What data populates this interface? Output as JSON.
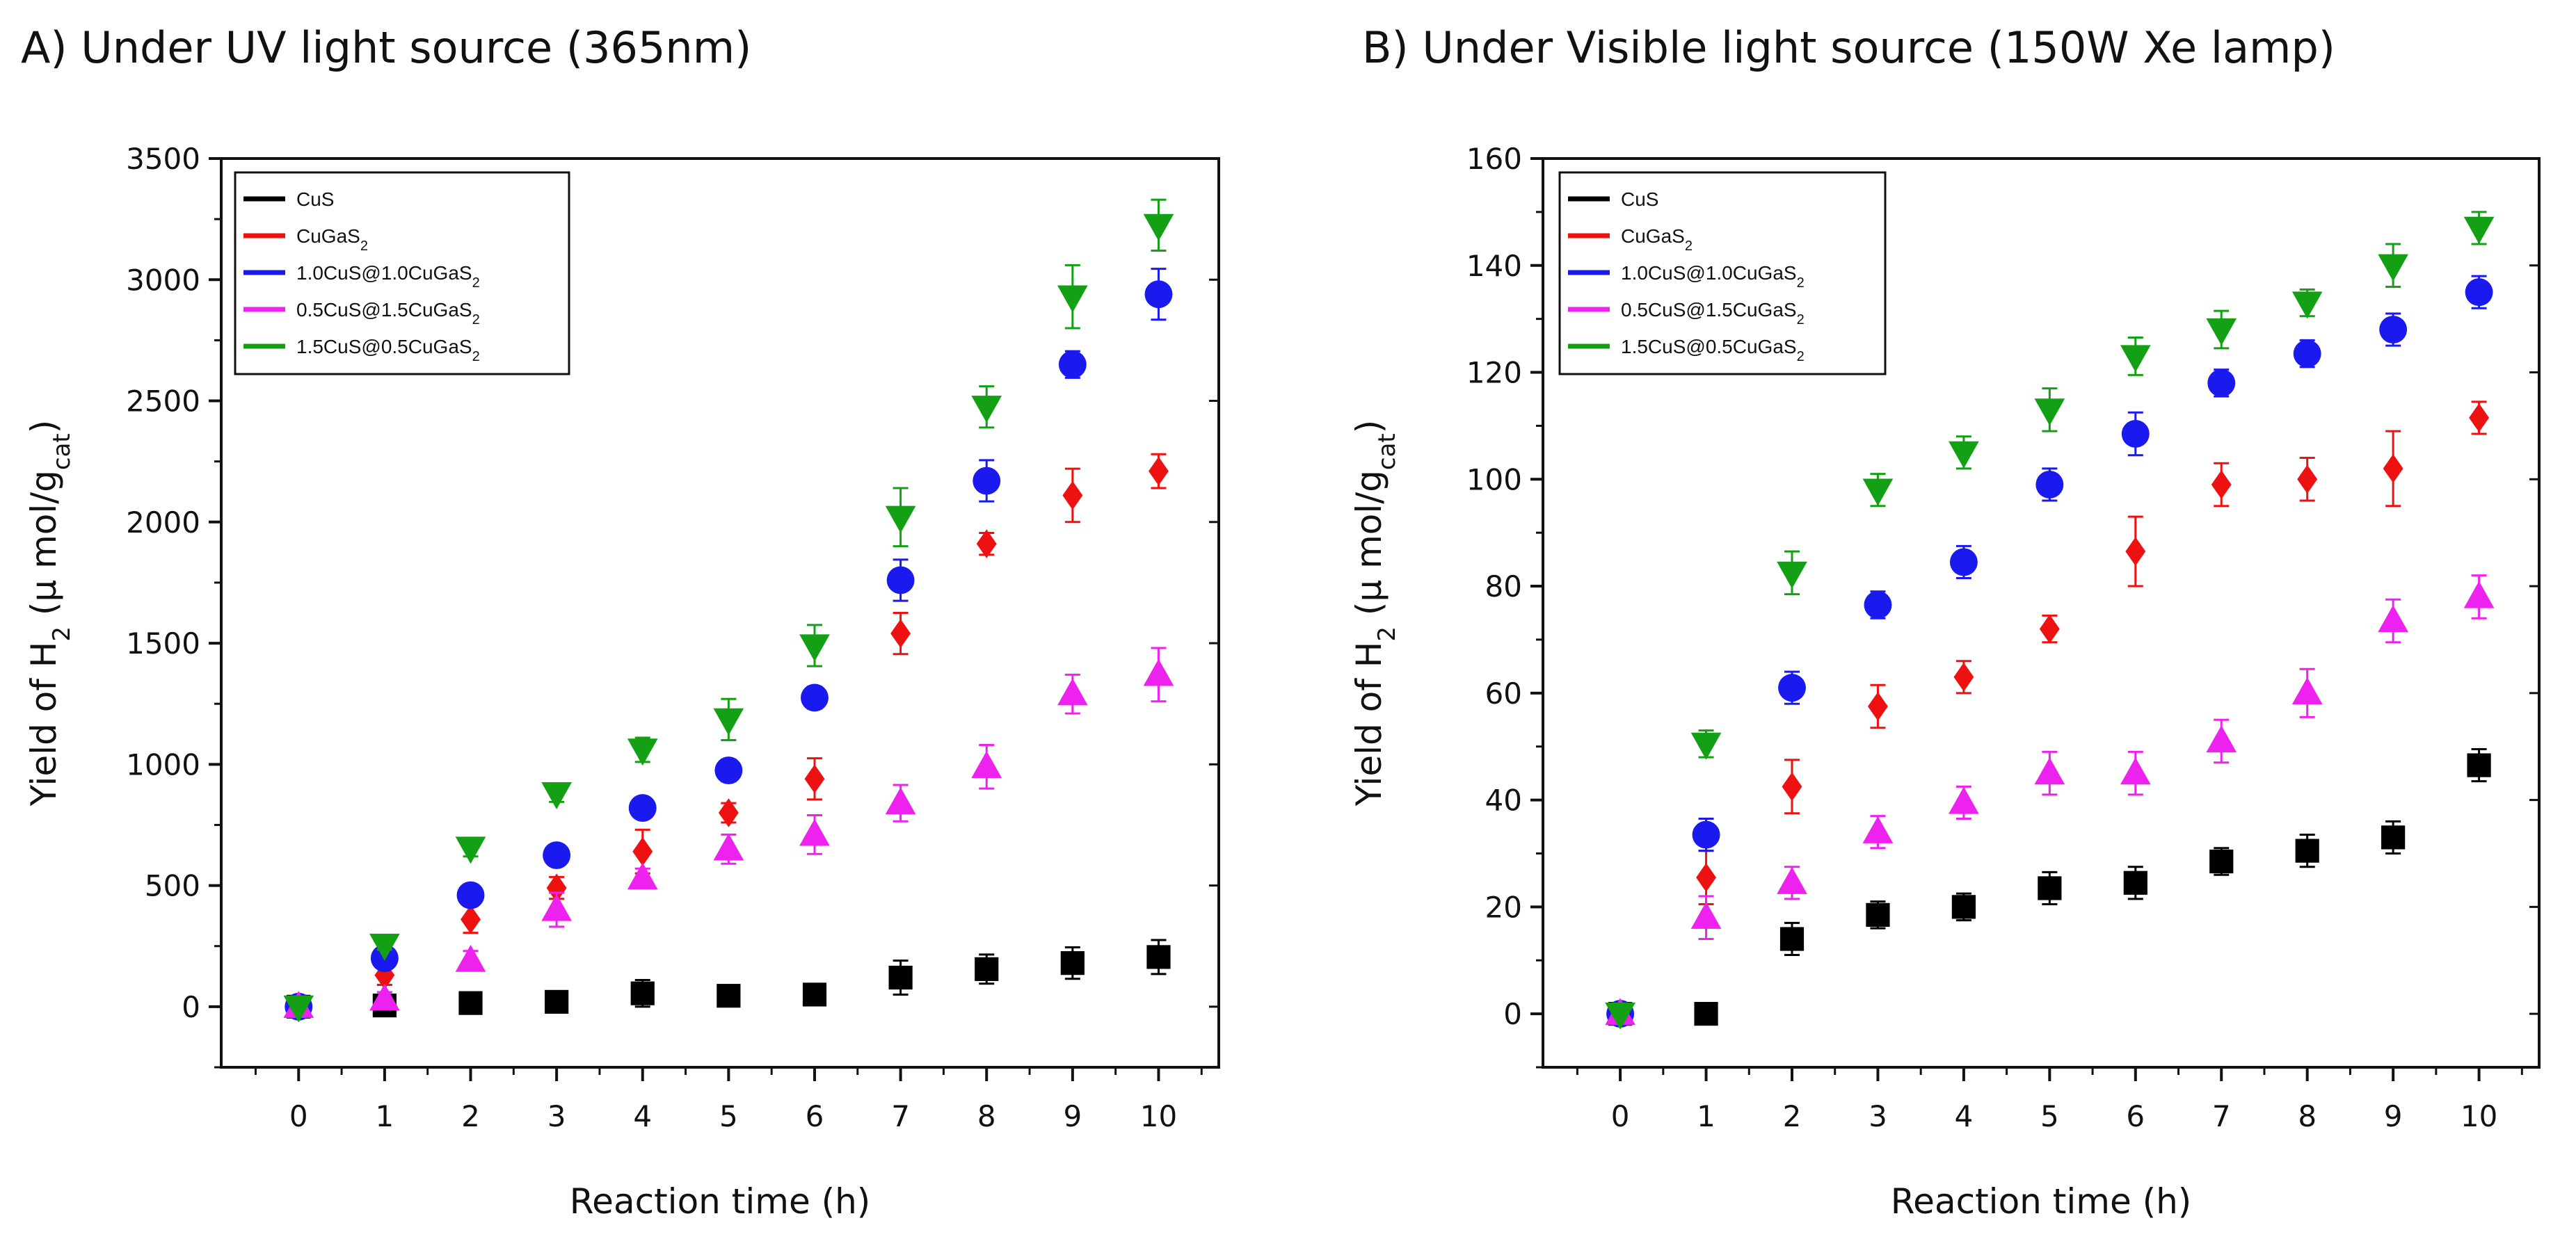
{
  "chart_data": [
    {
      "id": "A",
      "type": "scatter",
      "title": "A) Under UV light source (365nm)",
      "xlabel": "Reaction time (h)",
      "ylabel": {
        "main": "Yield of H",
        "sub1": "2",
        "mid": " (μ mol/g",
        "sub2": "cat",
        "end": ")"
      },
      "xlim": [
        -0.9,
        10.7
      ],
      "ylim": [
        -250,
        3500
      ],
      "xticks": [
        "0",
        "1",
        "2",
        "3",
        "4",
        "5",
        "6",
        "7",
        "8",
        "9",
        "10"
      ],
      "yticks": [
        "0",
        "500",
        "1000",
        "1500",
        "2000",
        "2500",
        "3000",
        "3500"
      ],
      "legend_position": "top-left",
      "x": [
        0,
        1,
        2,
        3,
        4,
        5,
        6,
        7,
        8,
        9,
        10
      ],
      "series": [
        {
          "name": "CuS",
          "parts": [
            "CuS"
          ],
          "color": "#000000",
          "marker": "square",
          "values": [
            0,
            5,
            15,
            20,
            55,
            45,
            50,
            120,
            155,
            180,
            205
          ],
          "errors": [
            10,
            20,
            25,
            30,
            55,
            25,
            30,
            70,
            60,
            65,
            70
          ]
        },
        {
          "name": "CuGaS2",
          "parts": [
            "CuGaS",
            "2"
          ],
          "color": "#ee1111",
          "marker": "diamond",
          "values": [
            0,
            130,
            360,
            490,
            640,
            800,
            940,
            1540,
            1910,
            2110,
            2210
          ],
          "errors": [
            10,
            40,
            55,
            45,
            90,
            40,
            85,
            85,
            45,
            110,
            70
          ]
        },
        {
          "name": "1.0CuS@1.0CuGaS2",
          "parts": [
            "1.0CuS@1.0CuGaS",
            "2"
          ],
          "color": "#1a1aee",
          "marker": "circle",
          "values": [
            0,
            200,
            460,
            625,
            820,
            975,
            1275,
            1760,
            2170,
            2650,
            2940
          ],
          "errors": [
            10,
            30,
            30,
            35,
            30,
            45,
            45,
            85,
            85,
            55,
            105
          ]
        },
        {
          "name": "0.5CuS@1.5CuGaS2",
          "parts": [
            "0.5CuS@1.5CuGaS",
            "2"
          ],
          "color": "#ee22ee",
          "marker": "triangle-up",
          "values": [
            0,
            30,
            190,
            400,
            530,
            650,
            710,
            840,
            990,
            1290,
            1370
          ],
          "errors": [
            10,
            30,
            40,
            70,
            40,
            60,
            80,
            75,
            90,
            80,
            110
          ]
        },
        {
          "name": "1.5CuS@0.5CuGaS2",
          "parts": [
            "1.5CuS@0.5CuGaS",
            "2"
          ],
          "color": "#14a014",
          "marker": "triangle-down",
          "values": [
            0,
            255,
            655,
            880,
            1060,
            1185,
            1490,
            2020,
            2475,
            2930,
            3225
          ],
          "errors": [
            10,
            20,
            35,
            35,
            50,
            85,
            85,
            120,
            85,
            130,
            105
          ]
        }
      ]
    },
    {
      "id": "B",
      "type": "scatter",
      "title": "B) Under Visible light source (150W Xe lamp)",
      "xlabel": "Reaction time (h)",
      "ylabel": {
        "main": "Yield of H",
        "sub1": "2",
        "mid": " (μ mol/g",
        "sub2": "cat",
        "end": ")"
      },
      "xlim": [
        -0.9,
        10.7
      ],
      "ylim": [
        -10,
        160
      ],
      "xticks": [
        "0",
        "1",
        "2",
        "3",
        "4",
        "5",
        "6",
        "7",
        "8",
        "9",
        "10"
      ],
      "yticks": [
        "0",
        "20",
        "40",
        "60",
        "80",
        "100",
        "120",
        "140",
        "160"
      ],
      "legend_position": "top-left",
      "x": [
        0,
        1,
        2,
        3,
        4,
        5,
        6,
        7,
        8,
        9,
        10
      ],
      "series": [
        {
          "name": "CuS",
          "parts": [
            "CuS"
          ],
          "color": "#000000",
          "marker": "square",
          "values": [
            0,
            0,
            14,
            18.5,
            20,
            23.5,
            24.5,
            28.5,
            30.5,
            33,
            46.5
          ],
          "errors": [
            0.5,
            0.5,
            3,
            2.5,
            2.5,
            3,
            3,
            2.5,
            3,
            3,
            3
          ]
        },
        {
          "name": "CuGaS2",
          "parts": [
            "CuGaS",
            "2"
          ],
          "color": "#ee1111",
          "marker": "diamond",
          "values": [
            0,
            25.5,
            42.5,
            57.5,
            63,
            72,
            86.5,
            99,
            100,
            102,
            111.5
          ],
          "errors": [
            0.5,
            5,
            5,
            4,
            3,
            2.5,
            6.5,
            4,
            4,
            7,
            3
          ]
        },
        {
          "name": "1.0CuS@1.0CuGaS2",
          "parts": [
            "1.0CuS@1.0CuGaS",
            "2"
          ],
          "color": "#1a1aee",
          "marker": "circle",
          "values": [
            0,
            33.5,
            61,
            76.5,
            84.5,
            99,
            108.5,
            118,
            123.5,
            128,
            135
          ],
          "errors": [
            0.5,
            3,
            3,
            2.5,
            3,
            3,
            4,
            2.5,
            2.5,
            3,
            3
          ]
        },
        {
          "name": "0.5CuS@1.5CuGaS2",
          "parts": [
            "0.5CuS@1.5CuGaS",
            "2"
          ],
          "color": "#ee22ee",
          "marker": "triangle-up",
          "values": [
            0,
            18,
            24.5,
            34,
            39.5,
            45,
            45,
            51,
            60,
            73.5,
            78
          ],
          "errors": [
            0.5,
            4,
            3,
            3,
            3,
            4,
            4,
            4,
            4.5,
            4,
            4
          ]
        },
        {
          "name": "1.5CuS@0.5CuGaS2",
          "parts": [
            "1.5CuS@0.5CuGaS",
            "2"
          ],
          "color": "#14a014",
          "marker": "triangle-down",
          "values": [
            0,
            50.5,
            82.5,
            98,
            105,
            113,
            123,
            128,
            133,
            140,
            147
          ],
          "errors": [
            0.5,
            2.5,
            4,
            3,
            3,
            4,
            3.5,
            3.5,
            2.5,
            4,
            3
          ]
        }
      ]
    }
  ]
}
